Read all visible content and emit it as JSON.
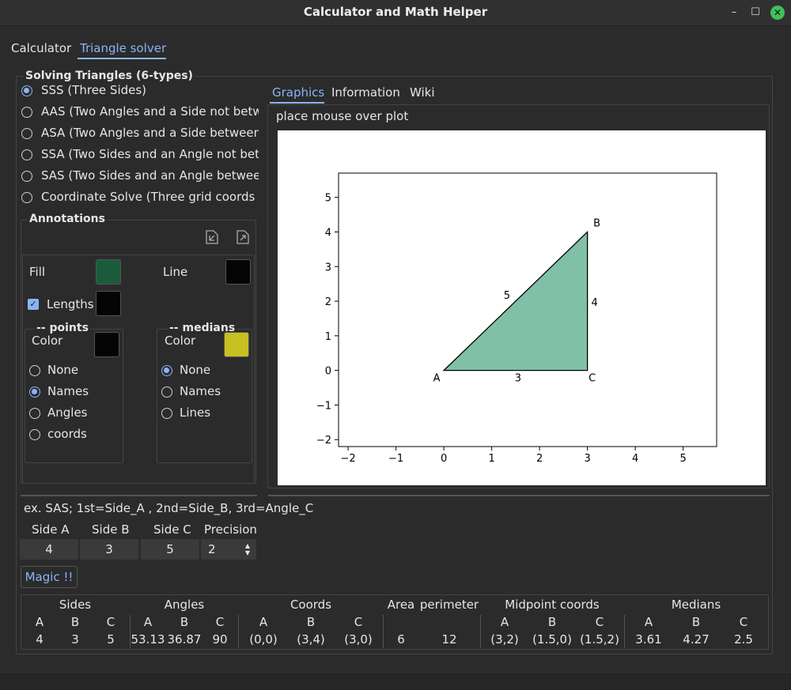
{
  "window": {
    "title": "Calculator and Math Helper"
  },
  "main_tabs": [
    {
      "label": "Calculator"
    },
    {
      "label": "Triangle solver"
    }
  ],
  "solve_group": {
    "title": "Solving Triangles (6-types)",
    "options": [
      {
        "label": "SSS (Three Sides)",
        "selected": true
      },
      {
        "label": "AAS (Two Angles and a Side not between)",
        "selected": false
      },
      {
        "label": "ASA (Two Angles and a Side between)",
        "selected": false
      },
      {
        "label": "SSA (Two Sides and an Angle not between)",
        "selected": false
      },
      {
        "label": "SAS (Two Sides and an Angle between)",
        "selected": false
      },
      {
        "label": "Coordinate Solve (Three grid coords for the vertices)",
        "selected": false
      }
    ]
  },
  "annotations": {
    "title": "Annotations",
    "fill_label": "Fill",
    "fill_color": "#1a5c3a",
    "line_label": "Line",
    "line_color": "#050505",
    "lengths_label": "Lengths",
    "lengths_color": "#050505",
    "points": {
      "title": "-- points",
      "color_label": "Color",
      "color": "#050505",
      "options": [
        {
          "label": "None",
          "selected": false
        },
        {
          "label": "Names",
          "selected": true
        },
        {
          "label": "Angles",
          "selected": false
        },
        {
          "label": "coords",
          "selected": false
        }
      ]
    },
    "medians": {
      "title": "-- medians",
      "color_label": "Color",
      "color": "#c8c020",
      "options": [
        {
          "label": "None",
          "selected": true
        },
        {
          "label": "Names",
          "selected": false
        },
        {
          "label": "Lines",
          "selected": false
        }
      ]
    }
  },
  "right_tabs": [
    {
      "label": "Graphics"
    },
    {
      "label": "Information"
    },
    {
      "label": "Wiki"
    }
  ],
  "plot": {
    "hint": "place mouse over plot",
    "xticks": [
      "−2",
      "−1",
      "0",
      "1",
      "2",
      "3",
      "4",
      "5"
    ],
    "yticks": [
      "5",
      "4",
      "3",
      "2",
      "1",
      "0",
      "−1",
      "−2"
    ],
    "vertex_labels": {
      "A": "A",
      "B": "B",
      "C": "C"
    },
    "side_labels": {
      "ab": "5",
      "bc": "4",
      "ac": "3"
    },
    "fill": "#80c0a6"
  },
  "chart_data": {
    "type": "area",
    "polygon": [
      [
        0,
        0
      ],
      [
        3,
        4
      ],
      [
        3,
        0
      ]
    ],
    "xlim": [
      -2.2,
      5.7
    ],
    "ylim": [
      -2.2,
      5.7
    ],
    "xticks": [
      -2,
      -1,
      0,
      1,
      2,
      3,
      4,
      5
    ],
    "yticks": [
      -2,
      -1,
      0,
      1,
      2,
      3,
      4,
      5
    ]
  },
  "inputs": {
    "hint": "ex. SAS; 1st=Side_A  , 2nd=Side_B,   3rd=Angle_C",
    "side_a_label": "Side A",
    "side_b_label": "Side B",
    "side_c_label": "Side C",
    "precision_label": "Precision",
    "side_a": "4",
    "side_b": "3",
    "side_c": "5",
    "precision": "2",
    "magic_label": "Magic !!"
  },
  "results": {
    "groups": {
      "sides": "Sides",
      "angles": "Angles",
      "coords": "Coords",
      "area": "Area",
      "perimeter": "perimeter",
      "midpoints": "Midpoint coords",
      "medians": "Medians"
    },
    "sub": {
      "a": "A",
      "b": "B",
      "c": "C"
    },
    "sides": [
      "4",
      "3",
      "5"
    ],
    "angles": [
      "53.13",
      "36.87",
      "90"
    ],
    "coords": [
      "(0,0)",
      "(3,4)",
      "(3,0)"
    ],
    "area": "6",
    "perimeter": "12",
    "midpoints": [
      "(3,2)",
      "(1.5,0)",
      "(1.5,2)"
    ],
    "medians": [
      "3.61",
      "4.27",
      "2.5"
    ]
  }
}
